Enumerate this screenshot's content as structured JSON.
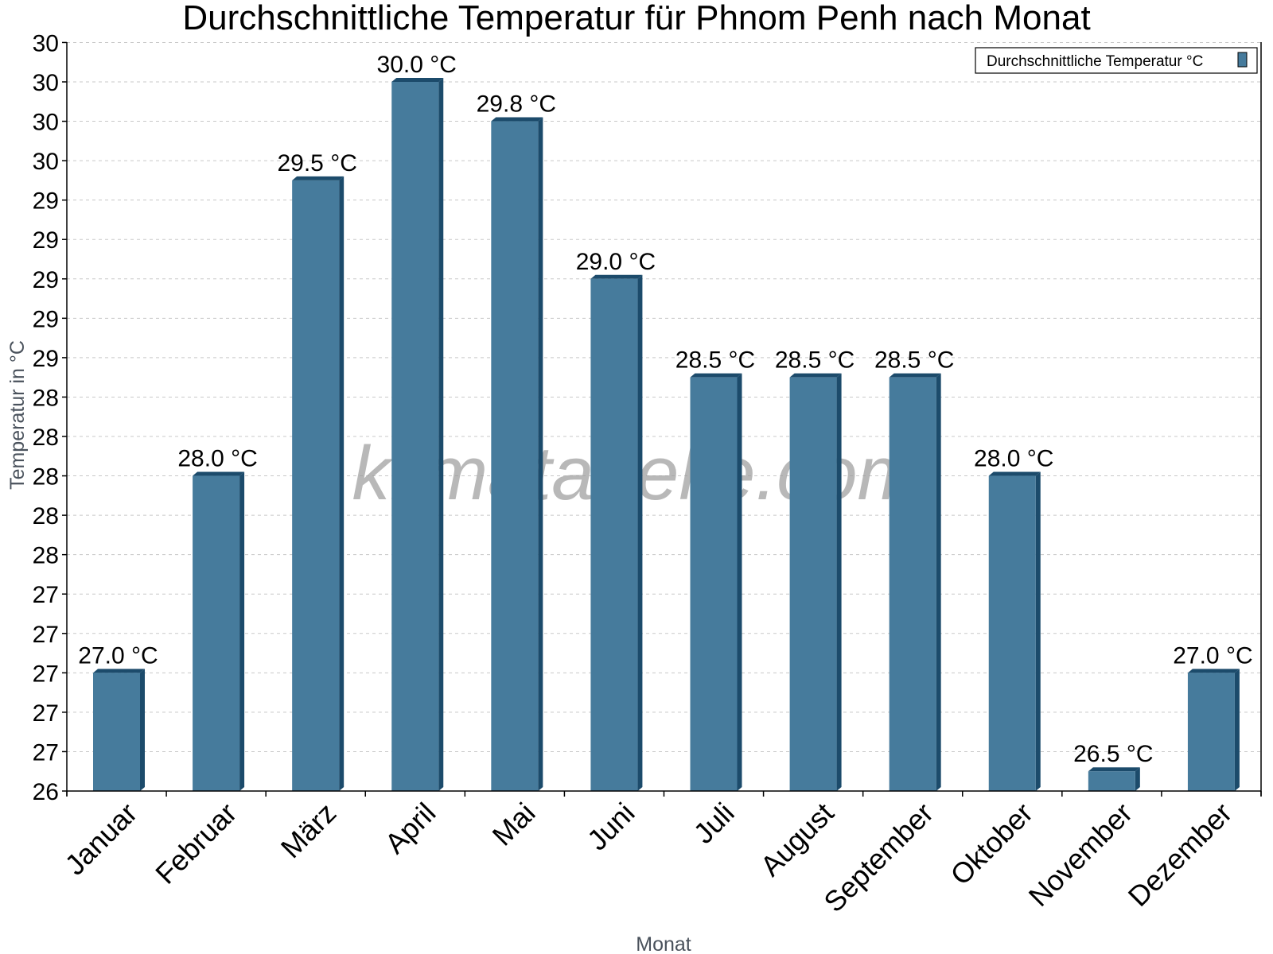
{
  "chart": {
    "title": "Durchschnittliche Temperatur für Phnom Penh nach Monat",
    "xlabel": "Monat",
    "ylabel": "Temperatur in °C",
    "legend": "Durchschnittliche Temperatur °C",
    "watermark": "klimatabelle.com",
    "colors": {
      "bar_front": "#467b9c",
      "bar_edge": "#1c4b6b"
    }
  },
  "chart_data": {
    "type": "bar",
    "title": "Durchschnittliche Temperatur für Phnom Penh nach Monat",
    "xlabel": "Monat",
    "ylabel": "Temperatur in °C",
    "categories": [
      "Januar",
      "Februar",
      "März",
      "April",
      "Mai",
      "Juni",
      "Juli",
      "August",
      "September",
      "Oktober",
      "November",
      "Dezember"
    ],
    "series": [
      {
        "name": "Durchschnittliche Temperatur °C",
        "values": [
          27.0,
          28.0,
          29.5,
          30.0,
          29.8,
          29.0,
          28.5,
          28.5,
          28.5,
          28.0,
          26.5,
          27.0
        ]
      }
    ],
    "value_labels": [
      "27.0 °C",
      "28.0 °C",
      "29.5 °C",
      "30.0 °C",
      "29.8 °C",
      "29.0 °C",
      "28.5 °C",
      "28.5 °C",
      "28.5 °C",
      "28.0 °C",
      "26.5 °C",
      "27.0 °C"
    ],
    "ylim": [
      26.4,
      30.2
    ],
    "ytick_step": 0.2,
    "ytick_labels": [
      "26",
      "27",
      "27",
      "27",
      "27",
      "27",
      "28",
      "28",
      "28",
      "28",
      "28",
      "29",
      "29",
      "29",
      "29",
      "29",
      "30",
      "30",
      "30",
      "30"
    ],
    "grid": true,
    "legend_position": "top-right"
  }
}
